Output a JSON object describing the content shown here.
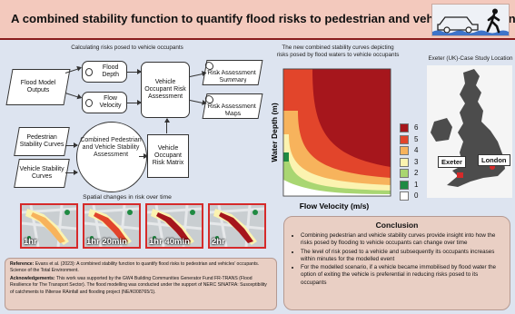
{
  "header": {
    "title": "A combined stability function to quantify flood risks to pedestrian and vehicles’ occupants",
    "icons": [
      "car-icon",
      "pedestrian-icon"
    ]
  },
  "flow": {
    "title": "Calculating risks posed to vehicle occupants",
    "flood_model": "Flood Model Outputs",
    "flood_depth": "Flood Depth",
    "flow_velocity": "Flow Velocity",
    "vehicle_occupant_risk_assessment": "Vehicle Occupant Risk Assessment",
    "risk_assessment_summary": "Risk Assessment Summary",
    "risk_assessment_maps": "Risk Assessment Maps",
    "pedestrian_curves": "Pedestrian Stability Curves",
    "vehicle_curves": "Vehicle Stability Curves",
    "combined": "Combined Pedestrian and Vehicle Stability Assessment",
    "risk_matrix": "Vehicle Occupant Risk Matrix"
  },
  "timeline": {
    "title": "Spatial changes in risk over time",
    "frames": [
      "1hr",
      "1hr 20min",
      "1hr 40min",
      "2hr"
    ]
  },
  "chart": {
    "title": "The new combined stability curves depicting risks posed by flood waters to vehicle occupants",
    "xlabel": "Flow Velocity (m/s)",
    "ylabel": "Water Depth (m)",
    "legend": [
      {
        "label": "6",
        "color": "#a6161c"
      },
      {
        "label": "5",
        "color": "#e2452b"
      },
      {
        "label": "4",
        "color": "#f7b35c"
      },
      {
        "label": "3",
        "color": "#fbf3b0"
      },
      {
        "label": "2",
        "color": "#a9d672"
      },
      {
        "label": "1",
        "color": "#1f8a42"
      },
      {
        "label": "0",
        "color": "#ffffff"
      }
    ]
  },
  "map": {
    "title": "Exeter (UK)-Case Study Location",
    "cities": [
      "Exeter",
      "London"
    ]
  },
  "reference": {
    "heading": "Reference:",
    "text": "Evans et al. (2023): A combined stability function to quantify flood risks to pedestrian and vehicles’ occupants. Science of the Total Environment.",
    "ack_heading": "Acknowledgements:",
    "ack_text": "This work was supported by the GW4 Building Communities Generator Fund FR-TRANS (Flood Resilience for The Transport Sector). The flood modelling was conducted under the support of NERC SINATRA: Susceptibility of catchments to INtense RAinfall and flooding project (NE/K008765/1)."
  },
  "conclusion": {
    "title": "Conclusion",
    "points": [
      "Combining pedestrian and vehicle stability curves provide insight into how the risks posed by flooding to vehicle occupants can change over time",
      "The level of risk posed to a vehicle and subsequently its occupants increases within minutes for the modelled event",
      "For the modelled scenario, if a vehicle became immobilised by flood water the option of exiting the vehicle is preferential in reducing risks posed to its occupants"
    ]
  }
}
